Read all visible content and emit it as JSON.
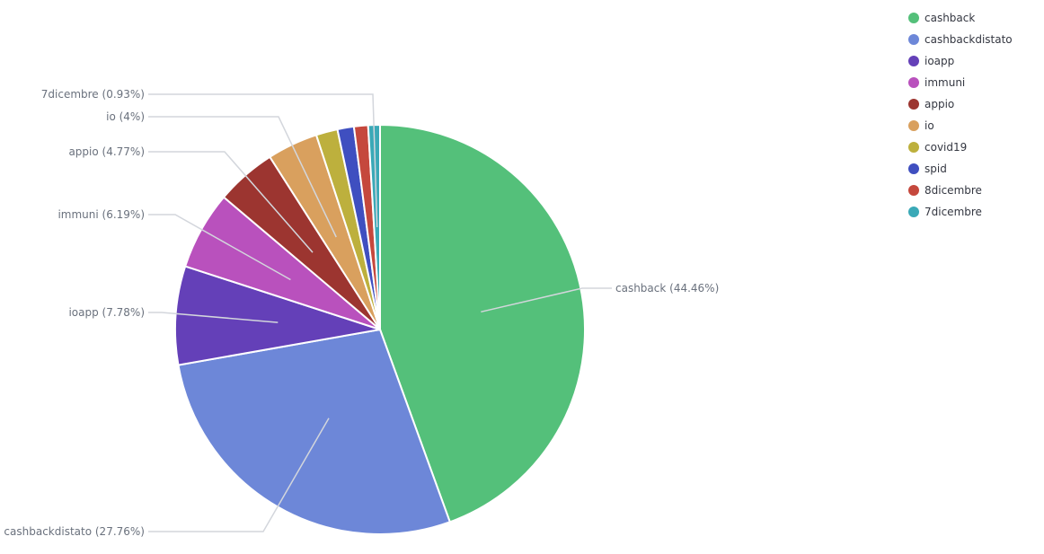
{
  "chart_data": {
    "type": "pie",
    "title": "",
    "slices": [
      {
        "name": "cashback",
        "value": 44.46,
        "label": "cashback (44.46%)",
        "color": "#54c07a"
      },
      {
        "name": "cashbackdistato",
        "value": 27.76,
        "label": "cashbackdistato (27.76%)",
        "color": "#6d87d8"
      },
      {
        "name": "ioapp",
        "value": 7.78,
        "label": "ioapp (7.78%)",
        "color": "#6440b8"
      },
      {
        "name": "immuni",
        "value": 6.19,
        "label": "immuni (6.19%)",
        "color": "#b951bd"
      },
      {
        "name": "appio",
        "value": 4.77,
        "label": "appio (4.77%)",
        "color": "#9c3530"
      },
      {
        "name": "io",
        "value": 4,
        "label": "io (4%)",
        "color": "#d9a05e"
      },
      {
        "name": "covid19",
        "value": 1.7,
        "label": "",
        "color": "#bdb03d"
      },
      {
        "name": "spid",
        "value": 1.3,
        "label": "",
        "color": "#3f4fc0"
      },
      {
        "name": "8dicembre",
        "value": 1.11,
        "label": "",
        "color": "#c5483d"
      },
      {
        "name": "7dicembre",
        "value": 0.93,
        "label": "7dicembre (0.93%)",
        "color": "#3aa9b7"
      }
    ],
    "legend": {
      "position": "top-right",
      "items": [
        "cashback",
        "cashbackdistato",
        "ioapp",
        "immuni",
        "appio",
        "io",
        "covid19",
        "spid",
        "8dicembre",
        "7dicembre"
      ]
    }
  }
}
